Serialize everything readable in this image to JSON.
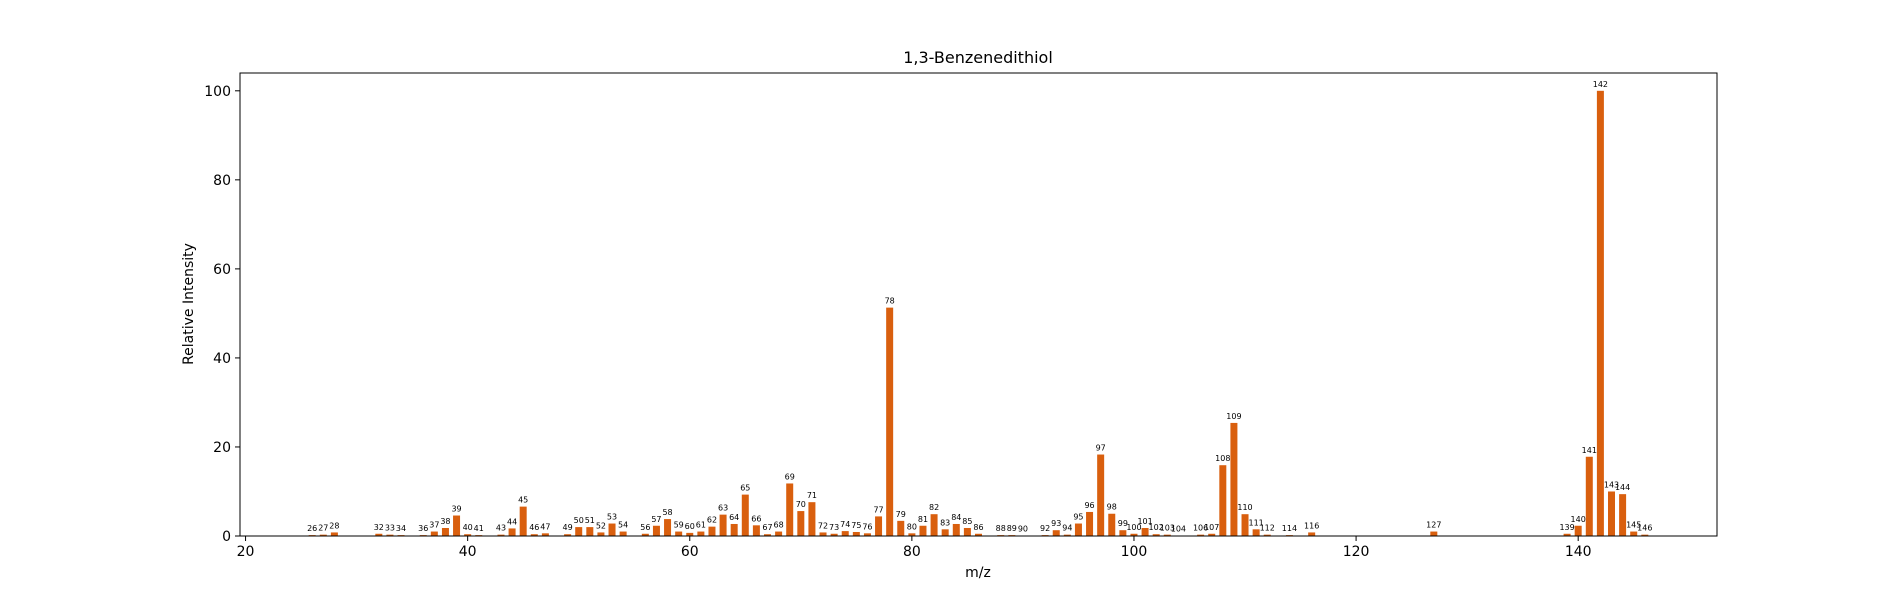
{
  "chart_data": {
    "type": "bar",
    "title": "1,3-Benzenedithiol",
    "xlabel": "m/z",
    "ylabel": "Relative Intensity",
    "xlim": [
      19.5,
      152.5
    ],
    "ylim": [
      0,
      104
    ],
    "xticks": [
      20,
      40,
      60,
      80,
      100,
      120,
      140
    ],
    "yticks": [
      0,
      20,
      40,
      60,
      80,
      100
    ],
    "bar_color": "#d95f0e",
    "grid": false,
    "legend": "none",
    "x": [
      26,
      27,
      28,
      32,
      33,
      34,
      36,
      37,
      38,
      39,
      40,
      41,
      43,
      44,
      45,
      46,
      47,
      49,
      50,
      51,
      52,
      53,
      54,
      56,
      57,
      58,
      59,
      60,
      61,
      62,
      63,
      64,
      65,
      66,
      67,
      68,
      69,
      70,
      71,
      72,
      73,
      74,
      75,
      76,
      77,
      78,
      79,
      80,
      81,
      82,
      83,
      84,
      85,
      86,
      88,
      89,
      90,
      92,
      93,
      94,
      95,
      96,
      97,
      98,
      99,
      100,
      101,
      102,
      103,
      104,
      106,
      107,
      108,
      109,
      110,
      111,
      112,
      114,
      116,
      127,
      139,
      140,
      141,
      142,
      143,
      144,
      145,
      146
    ],
    "values": [
      0.2,
      0.3,
      0.8,
      0.5,
      0.3,
      0.2,
      0.2,
      1.0,
      1.8,
      4.6,
      0.4,
      0.2,
      0.3,
      1.7,
      6.6,
      0.4,
      0.6,
      0.4,
      2.0,
      2.0,
      0.8,
      2.8,
      1.0,
      0.5,
      2.3,
      3.8,
      1.0,
      0.7,
      1.0,
      2.1,
      4.8,
      2.7,
      9.3,
      2.4,
      0.4,
      1.0,
      11.8,
      5.6,
      7.6,
      0.8,
      0.5,
      1.1,
      0.9,
      0.6,
      4.4,
      51.3,
      3.4,
      0.6,
      2.3,
      4.9,
      1.5,
      2.7,
      1.8,
      0.5,
      0.2,
      0.2,
      0.1,
      0.2,
      1.3,
      0.3,
      2.8,
      5.4,
      18.3,
      5.0,
      1.3,
      0.5,
      1.8,
      0.4,
      0.3,
      0.1,
      0.3,
      0.5,
      15.9,
      25.4,
      4.9,
      1.5,
      0.3,
      0.2,
      0.8,
      1.0,
      0.5,
      2.3,
      17.8,
      100.0,
      10.0,
      9.4,
      1.0,
      0.3
    ]
  }
}
